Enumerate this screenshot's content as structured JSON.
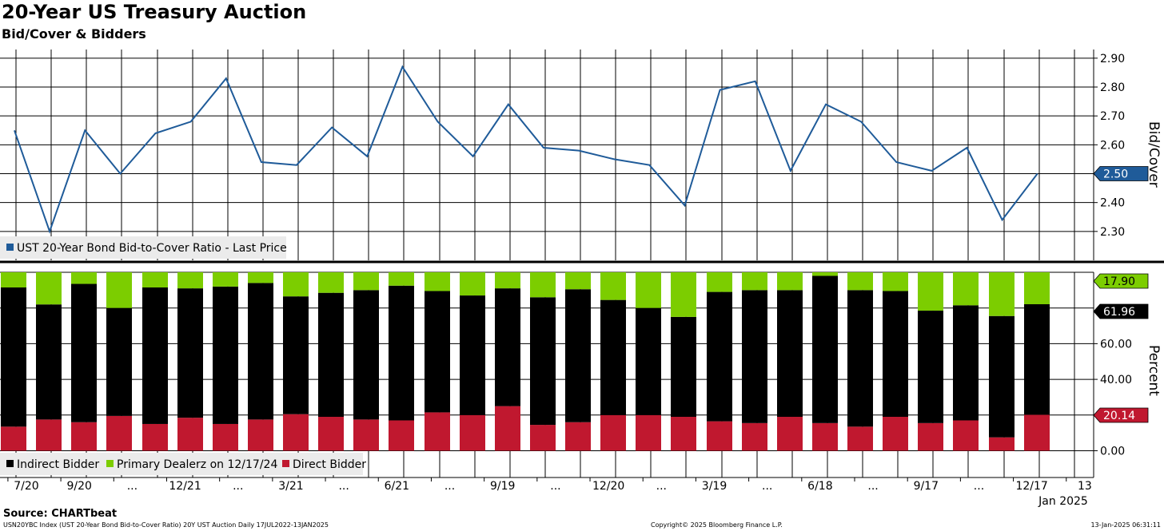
{
  "title": "20-Year US Treasury Auction",
  "subtitle": "Bid/Cover & Bidders",
  "source": "Source: CHARTbeat",
  "footer": {
    "left": "USN20YBC Index (UST 20-Year Bond Bid-to-Cover Ratio) 20Y UST Auction  Daily 17JUL2022-13JAN2025",
    "center": "Copyright© 2025 Bloomberg Finance L.P.",
    "right": "13-Jan-2025 06:31:11"
  },
  "colors": {
    "line": "#1f5b99",
    "indirect": "#000000",
    "dealer": "#7ccd00",
    "direct": "#c0182f",
    "grid": "#000000"
  },
  "x_labels": [
    "7/20",
    "9/20",
    "...",
    "12/21",
    "...",
    "3/21",
    "...",
    "6/21",
    "...",
    "9/19",
    "...",
    "12/20",
    "...",
    "3/19",
    "...",
    "6/18",
    "...",
    "9/17",
    "...",
    "12/17",
    "13"
  ],
  "x_year_label": "Jan 2025",
  "chart_data": [
    {
      "type": "line",
      "ylabel": "Bid/Cover",
      "yticks": [
        2.3,
        2.4,
        2.5,
        2.6,
        2.7,
        2.8,
        2.9
      ],
      "ylim": [
        2.2,
        2.93
      ],
      "series": [
        {
          "name": "UST 20-Year Bond Bid-to-Cover Ratio - Last Price",
          "values": [
            2.65,
            2.3,
            2.65,
            2.5,
            2.64,
            2.68,
            2.83,
            2.54,
            2.53,
            2.66,
            2.56,
            2.87,
            2.68,
            2.56,
            2.74,
            2.59,
            2.58,
            2.55,
            2.53,
            2.39,
            2.79,
            2.82,
            2.51,
            2.74,
            2.68,
            2.54,
            2.51,
            2.59,
            2.34,
            2.5
          ]
        }
      ],
      "last_value_label": "2.50",
      "grid": true,
      "legend": "bottom-left"
    },
    {
      "type": "bar",
      "stacked": true,
      "ylabel": "Percent",
      "yticks": [
        0.0,
        20.0,
        40.0,
        60.0
      ],
      "ylim": [
        -15,
        100
      ],
      "series": [
        {
          "name": "Direct Bidder",
          "values": [
            13.5,
            17.5,
            16.0,
            19.5,
            15.0,
            18.5,
            15.0,
            17.5,
            20.5,
            19.0,
            17.5,
            17.0,
            21.5,
            20.0,
            25.0,
            14.5,
            16.0,
            20.0,
            20.0,
            19.0,
            16.5,
            15.5,
            19.0,
            15.5,
            13.5,
            19.0,
            15.5,
            17.0,
            7.5,
            20.14
          ]
        },
        {
          "name": "Indirect Bidder",
          "values": [
            78.0,
            64.5,
            77.5,
            60.5,
            76.5,
            72.5,
            77.0,
            76.5,
            66.0,
            69.5,
            72.5,
            75.5,
            68.0,
            67.0,
            66.0,
            71.5,
            74.5,
            64.5,
            60.0,
            56.0,
            72.5,
            74.5,
            71.0,
            82.5,
            76.5,
            70.5,
            63.0,
            64.5,
            68.0,
            61.96
          ]
        },
        {
          "name": "Primary Dealerz on 12/17/24",
          "values": [
            8.5,
            18.0,
            6.5,
            20.0,
            8.5,
            9.0,
            8.0,
            6.0,
            13.5,
            11.5,
            10.0,
            7.5,
            10.5,
            13.0,
            9.0,
            14.0,
            9.5,
            15.5,
            20.0,
            25.0,
            11.0,
            10.0,
            10.0,
            2.0,
            10.0,
            10.5,
            21.5,
            18.5,
            24.5,
            17.9
          ]
        }
      ],
      "value_labels": {
        "dealer": "17.90",
        "indirect": "61.96",
        "direct": "20.14"
      },
      "grid": true,
      "legend": "bottom-left"
    }
  ]
}
